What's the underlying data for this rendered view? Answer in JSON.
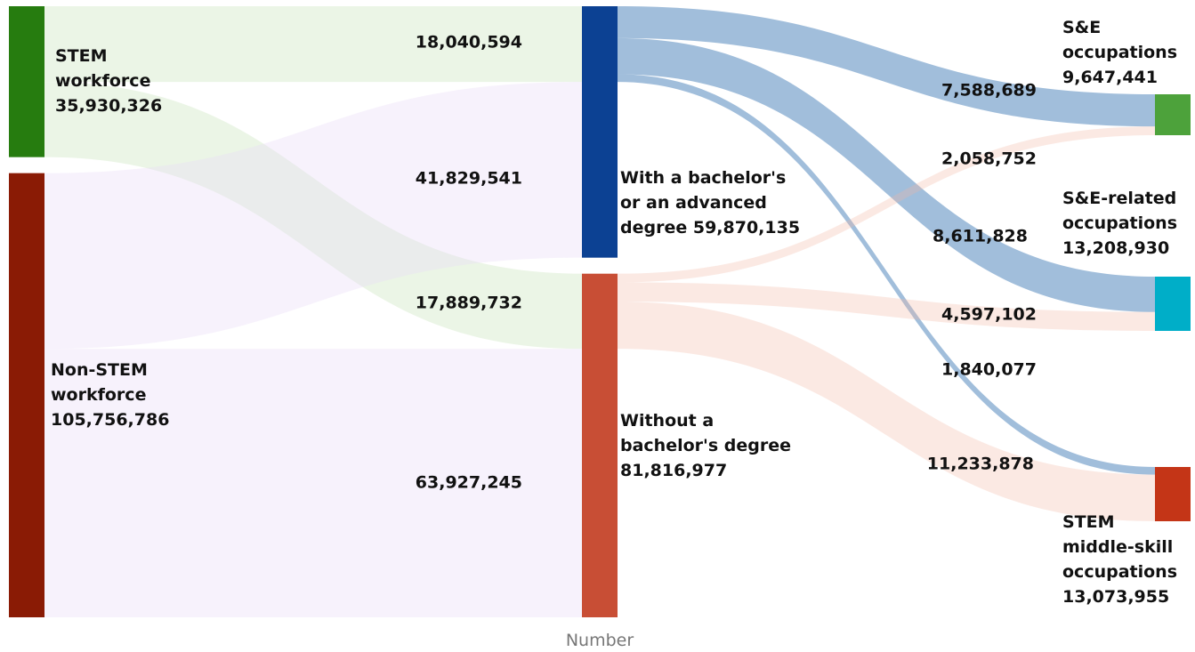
{
  "chart_data": {
    "type": "sankey",
    "xlabel": "Number",
    "nodes": [
      {
        "id": "stem",
        "lines": [
          "STEM",
          "workforce",
          "35,930,326"
        ],
        "value": 35930326,
        "column": 0,
        "color": "#267c0f"
      },
      {
        "id": "nonstem",
        "lines": [
          "Non-STEM",
          "workforce",
          "105,756,786"
        ],
        "value": 105756786,
        "column": 0,
        "color": "#8a1b05"
      },
      {
        "id": "bach",
        "lines": [
          "With a bachelor's",
          "or an advanced",
          "degree 59,870,135"
        ],
        "value": 59870135,
        "column": 1,
        "color": "#0c4193"
      },
      {
        "id": "nobach",
        "lines": [
          "Without a",
          "bachelor's degree",
          "81,816,977"
        ],
        "value": 81816977,
        "column": 1,
        "color": "#c84e35"
      },
      {
        "id": "se",
        "lines": [
          "S&E",
          "occupations",
          "9,647,441"
        ],
        "value": 9647441,
        "column": 2,
        "color": "#4da23b"
      },
      {
        "id": "serel",
        "lines": [
          "S&E-related",
          "occupations",
          "13,208,930"
        ],
        "value": 13208930,
        "column": 2,
        "color": "#00aec8"
      },
      {
        "id": "mid",
        "lines": [
          "STEM",
          "middle-skill",
          "occupations",
          "13,073,955"
        ],
        "value": 13073955,
        "column": 2,
        "color": "#c43517"
      }
    ],
    "links": [
      {
        "source": "stem",
        "target": "bach",
        "value": 18040594,
        "label": "18,040,594"
      },
      {
        "source": "stem",
        "target": "nobach",
        "value": 17889732,
        "label": "17,889,732"
      },
      {
        "source": "nonstem",
        "target": "bach",
        "value": 41829541,
        "label": "41,829,541"
      },
      {
        "source": "nonstem",
        "target": "nobach",
        "value": 63927245,
        "label": "63,927,245"
      },
      {
        "source": "bach",
        "target": "se",
        "value": 7588689,
        "label": "7,588,689"
      },
      {
        "source": "bach",
        "target": "serel",
        "value": 8611828,
        "label": "8,611,828"
      },
      {
        "source": "bach",
        "target": "mid",
        "value": 1840077,
        "label": "1,840,077"
      },
      {
        "source": "nobach",
        "target": "se",
        "value": 2058752,
        "label": "2,058,752"
      },
      {
        "source": "nobach",
        "target": "serel",
        "value": 4597102,
        "label": "4,597,102"
      },
      {
        "source": "nobach",
        "target": "mid",
        "value": 11233878,
        "label": "11,233,878"
      }
    ]
  }
}
